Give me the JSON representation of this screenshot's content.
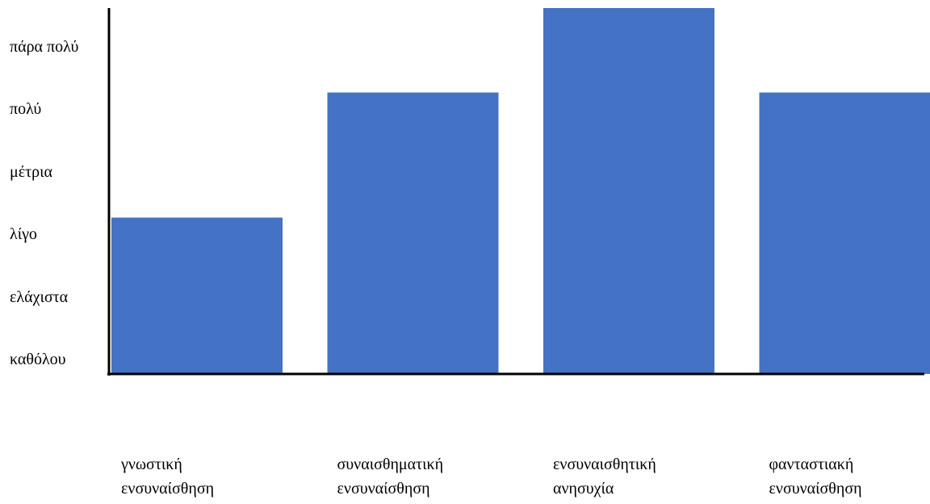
{
  "chart_data": {
    "type": "bar",
    "categories": [
      "γνωστική ενσυναίσθηση",
      "συναισθηματική ενσυναίσθηση",
      "ενσυναισθητική ανησυχία",
      "φανταστιακή ενσυναίσθηση"
    ],
    "values": [
      2.5,
      4.5,
      5.85,
      4.5
    ],
    "color": "#4472c4",
    "ylim": [
      0,
      5.85
    ],
    "yticks": [
      {
        "value": 0,
        "label": "καθόλου"
      },
      {
        "value": 1,
        "label": "ελάχιστα"
      },
      {
        "value": 2,
        "label": "λίγο"
      },
      {
        "value": 3,
        "label": "μέτρια"
      },
      {
        "value": 4,
        "label": "πολύ"
      },
      {
        "value": 5,
        "label": "πάρα πολύ"
      }
    ]
  }
}
